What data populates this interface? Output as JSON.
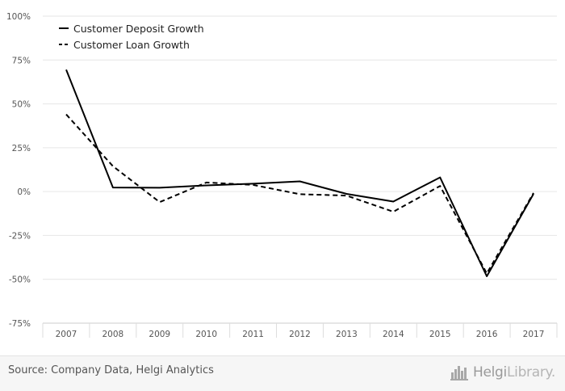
{
  "chart_data": {
    "type": "line",
    "categories": [
      "2007",
      "2008",
      "2009",
      "2010",
      "2011",
      "2012",
      "2013",
      "2014",
      "2015",
      "2016",
      "2017"
    ],
    "series": [
      {
        "name": "Customer Deposit Growth",
        "style": "solid",
        "color": "#000000",
        "values": [
          69.5,
          2.3,
          2.2,
          3.5,
          4.5,
          5.8,
          -1.3,
          -5.7,
          8.1,
          -48.3,
          -1.3
        ]
      },
      {
        "name": "Customer Loan Growth",
        "style": "dashed",
        "color": "#000000",
        "values": [
          44.0,
          14.5,
          -6.0,
          5.2,
          3.8,
          -1.5,
          -2.3,
          -11.5,
          3.2,
          -46.7,
          -0.8
        ]
      }
    ],
    "yticks": [
      "100%",
      "75%",
      "50%",
      "25%",
      "0%",
      "-25%",
      "-50%",
      "-75%"
    ],
    "ylim": [
      -75,
      100
    ],
    "grid": true,
    "legend_position": "top-left"
  },
  "footer": {
    "source": "Source: Company Data, Helgi Analytics",
    "brand_main": "Helgi",
    "brand_thin": "Library."
  }
}
